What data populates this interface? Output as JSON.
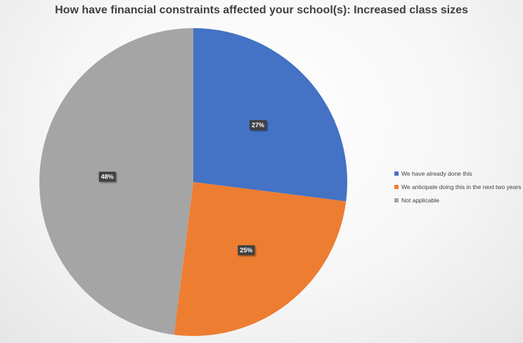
{
  "chart_data": {
    "type": "pie",
    "title": "How have financial constraints affected your school(s): Increased class sizes",
    "categories": [
      "We have already done this",
      "We anticipate doing this in the next two years",
      "Not applicable"
    ],
    "values": [
      27,
      25,
      48
    ],
    "value_labels": [
      "27%",
      "25%",
      "48%"
    ],
    "colors": [
      "#4472C4",
      "#ED7D31",
      "#A5A5A5"
    ],
    "legend_position": "right",
    "start_angle": "12 o'clock",
    "direction": "clockwise"
  }
}
